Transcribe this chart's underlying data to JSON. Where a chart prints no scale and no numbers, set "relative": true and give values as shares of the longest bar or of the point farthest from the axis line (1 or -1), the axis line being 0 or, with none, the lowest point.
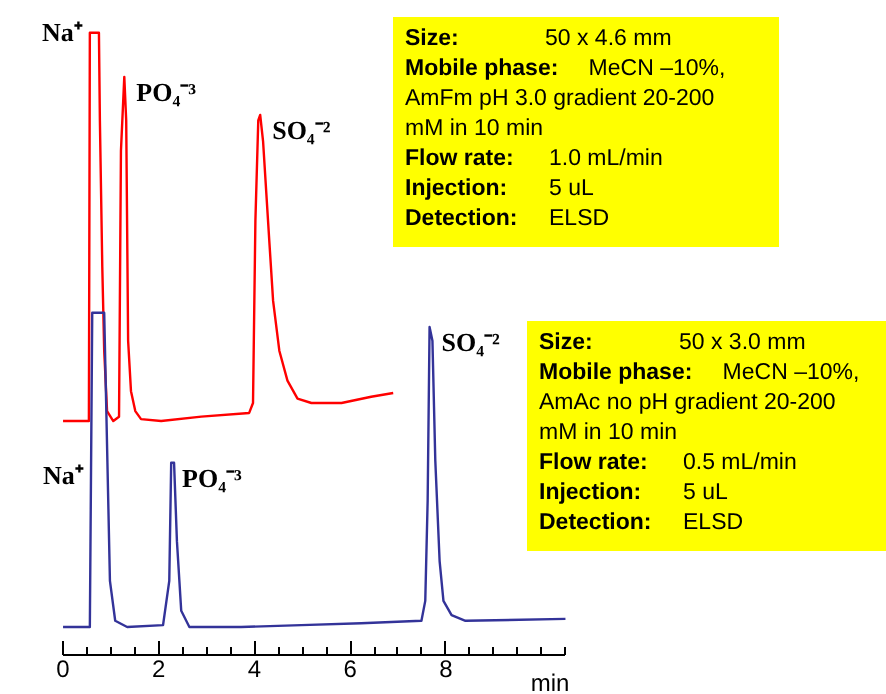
{
  "chart_data": {
    "type": "line",
    "relative": true,
    "xlabel": "min",
    "xlim": [
      0,
      10.5
    ],
    "xticks": [
      0,
      2,
      4,
      6,
      8
    ],
    "grid": false,
    "marker": "none",
    "line_style": "solid",
    "series": [
      {
        "color": "#ff0000",
        "x": [
          0,
          0.54,
          0.56,
          0.75,
          0.77,
          0.82,
          0.86,
          0.92,
          1.05,
          1.17,
          1.21,
          1.28,
          1.32,
          1.36,
          1.42,
          1.51,
          1.63,
          2.05,
          2.89,
          3.89,
          3.97,
          4.02,
          4.08,
          4.12,
          4.18,
          4.31,
          4.39,
          4.52,
          4.69,
          4.9,
          5.19,
          5.82,
          6.44,
          6.9
        ],
        "values": [
          0.376,
          0.376,
          1.0,
          1.0,
          0.859,
          0.624,
          0.489,
          0.392,
          0.376,
          0.383,
          0.81,
          0.929,
          0.859,
          0.505,
          0.424,
          0.392,
          0.379,
          0.376,
          0.383,
          0.389,
          0.405,
          0.698,
          0.859,
          0.868,
          0.826,
          0.666,
          0.569,
          0.489,
          0.441,
          0.412,
          0.405,
          0.405,
          0.415,
          0.421
        ]
      },
      {
        "color": "#333399",
        "x": [
          0,
          0.56,
          0.61,
          0.86,
          0.9,
          0.98,
          1.09,
          1.34,
          2.09,
          2.22,
          2.26,
          2.32,
          2.38,
          2.47,
          2.64,
          3.72,
          4.98,
          6.23,
          7.49,
          7.57,
          7.62,
          7.66,
          7.72,
          7.78,
          7.87,
          7.95,
          8.12,
          8.41,
          10.5
        ],
        "values": [
          0.045,
          0.045,
          0.55,
          0.55,
          0.408,
          0.119,
          0.055,
          0.045,
          0.048,
          0.119,
          0.309,
          0.309,
          0.183,
          0.071,
          0.045,
          0.045,
          0.048,
          0.051,
          0.055,
          0.087,
          0.248,
          0.527,
          0.505,
          0.312,
          0.151,
          0.087,
          0.064,
          0.055,
          0.058
        ]
      }
    ],
    "annotations": [
      {
        "text": "Na⁺",
        "x": 0.56,
        "y": 1.0
      },
      {
        "text": "PO₄⁻³",
        "x": 1.28,
        "y": 0.929
      },
      {
        "text": "SO₄⁻²",
        "x": 4.12,
        "y": 0.868
      },
      {
        "text": "Na⁺",
        "x": 0.58,
        "y": 0.3
      },
      {
        "text": "PO₄⁻³",
        "x": 2.32,
        "y": 0.309
      },
      {
        "text": "SO₄⁻²",
        "x": 7.66,
        "y": 0.527
      },
      "Size: 50 x 4.6 mm\nMobile phase: MeCN –10%,\nAmFm pH 3.0  gradient 20-200\nmM in 10 min\nFlow rate: 1.0  mL/min\nInjection: 5 uL\nDetection: ELSD",
      "Size: 50 x 3.0 mm\nMobile phase: MeCN –10%,\nAmAc no pH gradient 20-200\nmM in 10 min\nFlow rate: 0.5  mL/min\nInjection: 5 uL\nDetection: ELSD"
    ]
  }
}
